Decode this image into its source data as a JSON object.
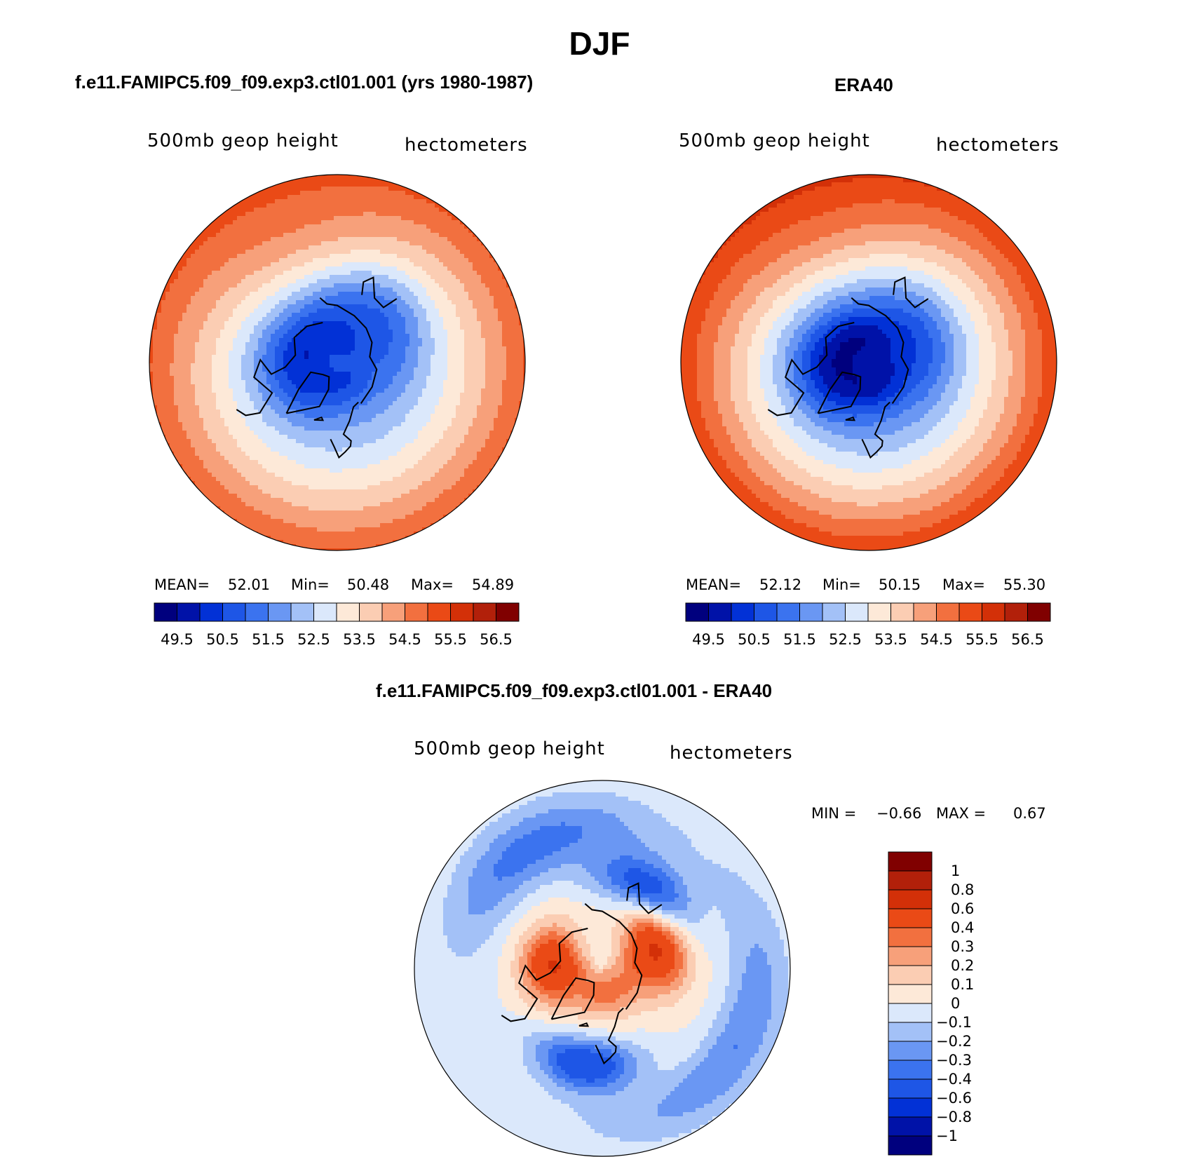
{
  "figure": {
    "title": "DJF"
  },
  "chart_data": [
    {
      "type": "contour-map",
      "panel": "model",
      "title": "f.e11.FAMIPC5.f09_f09.exp3.ctl01.001 (yrs 1980-1987)",
      "variable_label": "500mb geop height",
      "units_label": "hectometers",
      "stats": {
        "mean_label": "MEAN=",
        "mean": "52.01",
        "min_label": "Min=",
        "min": "50.48",
        "max_label": "Max=",
        "max": "54.89"
      },
      "levels": [
        "49.5",
        "50.5",
        "51.5",
        "52.5",
        "53.5",
        "54.5",
        "55.5",
        "56.5"
      ],
      "colors": [
        "#00007e",
        "#0012a8",
        "#0231d6",
        "#1e56e6",
        "#3b73ef",
        "#6a97f3",
        "#a3c1f7",
        "#dbe8fb",
        "#fde9d8",
        "#fbcdb3",
        "#f7a07a",
        "#f2703f",
        "#ea4a16",
        "#d33008",
        "#b2200a",
        "#800000"
      ],
      "contour_field": {
        "pole_value": 51.2,
        "low_centers": [
          {
            "lat": 72,
            "lon": -88,
            "depth": 1.4
          },
          {
            "lat": 63,
            "lon": 140,
            "depth": 1.1
          }
        ],
        "lowlat_value": 55.0
      }
    },
    {
      "type": "contour-map",
      "panel": "obs",
      "title": "ERA40",
      "variable_label": "500mb geop height",
      "units_label": "hectometers",
      "stats": {
        "mean_label": "MEAN=",
        "mean": "52.12",
        "min_label": "Min=",
        "min": "50.15",
        "max_label": "Max=",
        "max": "55.30"
      },
      "levels": [
        "49.5",
        "50.5",
        "51.5",
        "52.5",
        "53.5",
        "54.5",
        "55.5",
        "56.5"
      ],
      "colors": [
        "#00007e",
        "#0012a8",
        "#0231d6",
        "#1e56e6",
        "#3b73ef",
        "#6a97f3",
        "#a3c1f7",
        "#dbe8fb",
        "#fde9d8",
        "#fbcdb3",
        "#f7a07a",
        "#f2703f",
        "#ea4a16",
        "#d33008",
        "#b2200a",
        "#800000"
      ],
      "contour_field": {
        "pole_value": 50.8,
        "low_centers": [
          {
            "lat": 74,
            "lon": -80,
            "depth": 1.6
          },
          {
            "lat": 68,
            "lon": 120,
            "depth": 1.0
          }
        ],
        "lowlat_value": 55.4
      }
    },
    {
      "type": "contour-map",
      "panel": "diff",
      "title": "f.e11.FAMIPC5.f09_f09.exp3.ctl01.001 - ERA40",
      "variable_label": "500mb geop height",
      "units_label": "hectometers",
      "stats": {
        "min_label": "MIN =",
        "min": "−0.66",
        "max_label": "MAX =",
        "max": "0.67"
      },
      "levels": [
        "1",
        "0.8",
        "0.6",
        "0.4",
        "0.3",
        "0.2",
        "0.1",
        "0",
        "−0.1",
        "−0.2",
        "−0.3",
        "−0.4",
        "−0.6",
        "−0.8",
        "−1"
      ],
      "colors": [
        "#800000",
        "#b2200a",
        "#d33008",
        "#ea4a16",
        "#f2703f",
        "#f7a07a",
        "#fbcdb3",
        "#fde9d8",
        "#dbe8fb",
        "#a3c1f7",
        "#6a97f3",
        "#3b73ef",
        "#1e56e6",
        "#0231d6",
        "#0012a8",
        "#00007e"
      ],
      "contour_field": {
        "center_value": 0.5,
        "ring_value": -0.3
      }
    }
  ]
}
